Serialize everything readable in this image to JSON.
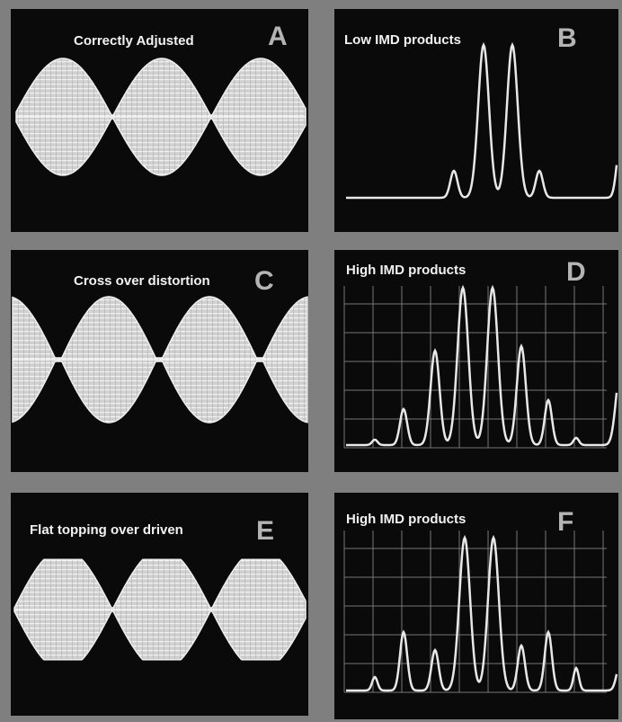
{
  "panels": [
    {
      "title": "Correctly Adjusted",
      "letter": "A"
    },
    {
      "title": "Low IMD products",
      "letter": "B"
    },
    {
      "title": "Cross over distortion",
      "letter": "C"
    },
    {
      "title": "High IMD products",
      "letter": "D"
    },
    {
      "title": "Flat topping over driven",
      "letter": "E"
    },
    {
      "title": "High IMD products",
      "letter": "F"
    }
  ]
}
